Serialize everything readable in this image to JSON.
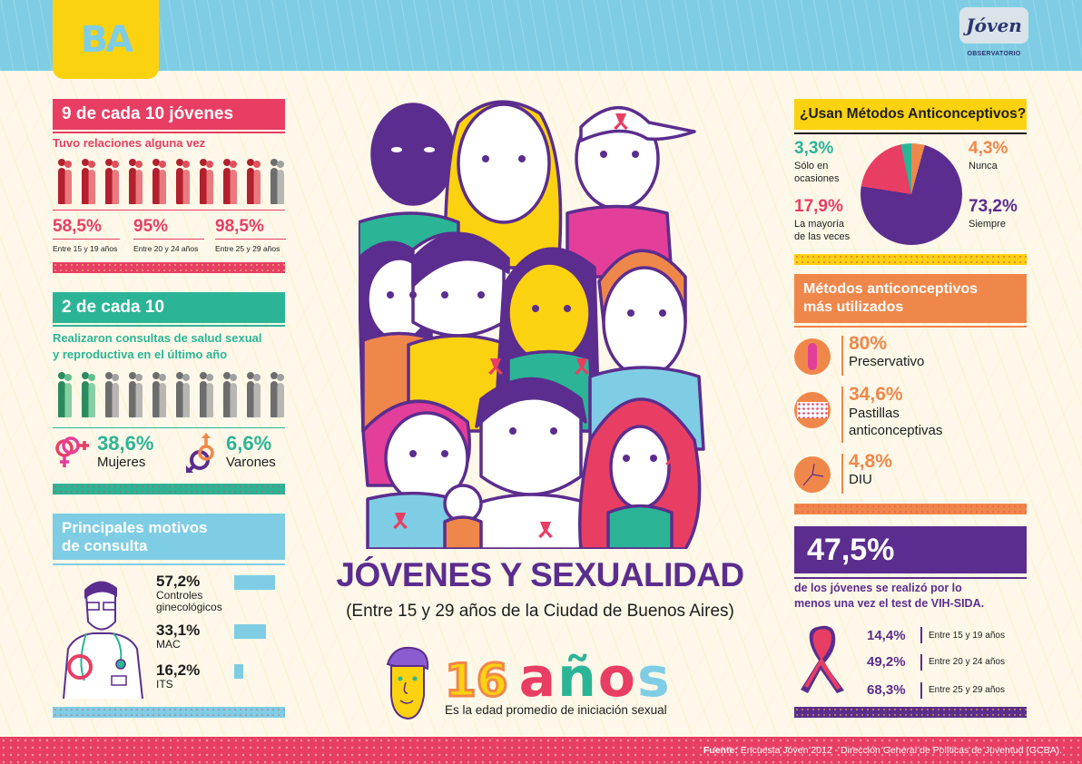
{
  "header": {
    "logo_left": "BA",
    "logo_right_mark": "Jóven",
    "logo_right_caption": "OBSERVATORIO"
  },
  "colors": {
    "pink": "#e83e63",
    "teal": "#2bb596",
    "sky": "#7fcde4",
    "yellow": "#fbd20f",
    "orange": "#f0874a",
    "purple": "#5b2d8e",
    "cream": "#fdf8ea"
  },
  "section_relations": {
    "title": "9 de cada 10 jóvenes",
    "subtitle": "Tuvo relaciones alguna vez",
    "icons_filled": 9,
    "icons_total": 10,
    "stats": [
      {
        "value": "58,5%",
        "label": "Entre 15 y 19 años"
      },
      {
        "value": "95%",
        "label": "Entre 20 y 24 años"
      },
      {
        "value": "98,5%",
        "label": "Entre 25 y 29 años"
      }
    ]
  },
  "section_consults": {
    "title": "2 de cada 10",
    "subtitle_line1": "Realizaron consultas de salud sexual",
    "subtitle_line2": "y reproductiva en el último año",
    "icons_filled": 2,
    "icons_total": 10,
    "women": {
      "value": "38,6%",
      "label": "Mujeres",
      "icon": "female-symbols-icon"
    },
    "men": {
      "value": "6,6%",
      "label": "Varones",
      "icon": "male-symbols-icon"
    }
  },
  "section_reasons": {
    "title_line1": "Principales motivos",
    "title_line2": "de consulta",
    "items": [
      {
        "value": "57,2%",
        "label_line1": "Controles",
        "label_line2": "ginecológicos",
        "bar": 57.2
      },
      {
        "value": "33,1%",
        "label_line1": "MAC",
        "label_line2": "",
        "bar": 33.1
      },
      {
        "value": "16,2%",
        "label_line1": "ITS",
        "label_line2": "",
        "bar": 16.2
      }
    ]
  },
  "center": {
    "title": "JÓVENES Y SEXUALIDAD",
    "subtitle": "(Entre 15 y 29 años de la Ciudad de Buenos Aires)",
    "age_value": "16 años",
    "age_digits": "16",
    "age_word": "años",
    "age_caption": "Es la edad promedio de iniciación sexual"
  },
  "section_contraceptive_use": {
    "title": "¿Usan Métodos Anticonceptivos?",
    "slices": [
      {
        "value": "3,3%",
        "label_line1": "Sólo en",
        "label_line2": "ocasiones",
        "color": "#2bb596"
      },
      {
        "value": "4,3%",
        "label_line1": "Nunca",
        "label_line2": "",
        "color": "#f0874a"
      },
      {
        "value": "17,9%",
        "label_line1": "La mayoría",
        "label_line2": "de las veces",
        "color": "#e83e63"
      },
      {
        "value": "73,2%",
        "label_line1": "Siempre",
        "label_line2": "",
        "color": "#5b2d8e"
      }
    ]
  },
  "chart_data": {
    "type": "pie",
    "title": "¿Usan Métodos Anticonceptivos?",
    "categories": [
      "Sólo en ocasiones",
      "Nunca",
      "La mayoría de las veces",
      "Siempre"
    ],
    "values": [
      3.3,
      4.3,
      17.9,
      73.2
    ],
    "colors": [
      "#2bb596",
      "#f0874a",
      "#e83e63",
      "#5b2d8e"
    ]
  },
  "section_methods": {
    "title_line1": "Métodos anticonceptivos",
    "title_line2": "más utilizados",
    "items": [
      {
        "value": "80%",
        "label_line1": "Preservativo",
        "label_line2": "",
        "icon": "condom-icon"
      },
      {
        "value": "34,6%",
        "label_line1": "Pastillas",
        "label_line2": "anticonceptivas",
        "icon": "pill-pack-icon"
      },
      {
        "value": "4,8%",
        "label_line1": "DIU",
        "label_line2": "",
        "icon": "iud-icon"
      }
    ]
  },
  "section_hiv": {
    "headline": "47,5%",
    "text_line1": "de los jóvenes se realizó por lo",
    "text_line2": "menos una vez el test de VIH-SIDA.",
    "rows": [
      {
        "value": "14,4%",
        "label": "Entre 15 y 19 años"
      },
      {
        "value": "49,2%",
        "label": "Entre 20 y 24 años"
      },
      {
        "value": "68,3%",
        "label": "Entre 25 y 29 años"
      }
    ]
  },
  "footer": {
    "source_label": "Fuente:",
    "source_text": " Encuesta Jóven 2012 - Dirección General de Políticas de Juventud (GCBA)."
  }
}
